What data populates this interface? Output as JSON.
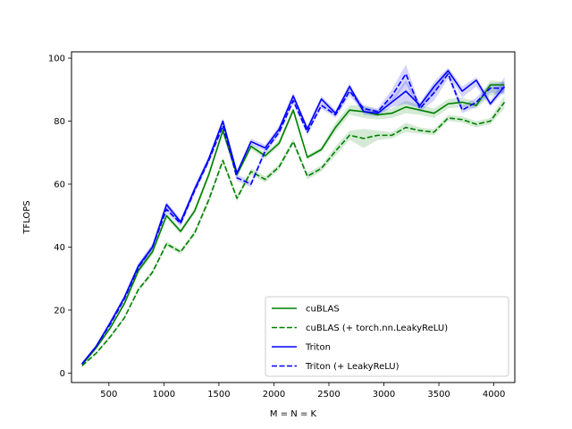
{
  "chart_data": {
    "type": "line",
    "title": "",
    "xlabel": "M = N = K",
    "ylabel": "TFLOPS",
    "xlim": [
      160,
      4190
    ],
    "ylim": [
      -3,
      102
    ],
    "xticks": [
      500,
      1000,
      1500,
      2000,
      2500,
      3000,
      3500,
      4000
    ],
    "yticks": [
      0,
      20,
      40,
      60,
      80,
      100
    ],
    "grid": false,
    "legend_position": "lower-right",
    "x": [
      256,
      384,
      512,
      640,
      768,
      896,
      1024,
      1152,
      1280,
      1408,
      1536,
      1664,
      1792,
      1920,
      2048,
      2176,
      2304,
      2432,
      2560,
      2688,
      2816,
      2944,
      3072,
      3200,
      3328,
      3456,
      3584,
      3712,
      3840,
      3968,
      4096
    ],
    "series": [
      {
        "name": "cuBLAS",
        "color": "#008000",
        "dash": "solid",
        "values": [
          2.6,
          8.0,
          14.3,
          22.0,
          32.5,
          38.5,
          50.0,
          45.0,
          51.5,
          63.0,
          77.0,
          63.0,
          72.0,
          69.0,
          73.0,
          83.5,
          68.5,
          71.0,
          78.0,
          83.5,
          83.0,
          82.0,
          82.5,
          84.5,
          83.5,
          82.5,
          85.5,
          86.0,
          85.0,
          91.5,
          91.5
        ],
        "band_low": [
          2.4,
          7.6,
          13.8,
          21.3,
          31.5,
          37.5,
          49.0,
          44.2,
          50.5,
          62.0,
          76.0,
          62.0,
          71.0,
          68.0,
          72.0,
          82.5,
          67.8,
          70.2,
          76.5,
          82.0,
          81.0,
          80.5,
          81.0,
          82.5,
          82.0,
          81.0,
          84.0,
          84.5,
          84.0,
          88.0,
          89.0
        ],
        "band_high": [
          2.8,
          8.4,
          14.8,
          22.7,
          33.5,
          39.5,
          51.0,
          45.8,
          52.5,
          64.0,
          78.0,
          64.0,
          73.0,
          70.0,
          74.0,
          84.5,
          69.2,
          71.8,
          79.5,
          85.0,
          85.0,
          83.5,
          84.0,
          86.5,
          85.0,
          84.0,
          87.0,
          87.5,
          86.0,
          93.0,
          92.5
        ]
      },
      {
        "name": "cuBLAS (+ torch.nn.LeakyReLU)",
        "color": "#008000",
        "dash": "dashed",
        "values": [
          2.3,
          6.3,
          11.5,
          17.5,
          26.5,
          32.0,
          41.0,
          38.5,
          44.5,
          55.0,
          67.5,
          55.5,
          64.0,
          61.5,
          65.5,
          73.5,
          62.5,
          65.0,
          70.5,
          75.5,
          74.5,
          75.5,
          75.5,
          78.0,
          77.0,
          76.5,
          81.0,
          80.5,
          79.0,
          80.0,
          86.0
        ],
        "band_low": [
          2.1,
          6.0,
          11.0,
          17.0,
          25.8,
          31.2,
          40.2,
          37.8,
          43.6,
          54.0,
          66.5,
          54.5,
          63.0,
          60.5,
          64.5,
          72.5,
          61.5,
          64.0,
          69.0,
          74.0,
          71.5,
          74.0,
          74.5,
          76.5,
          76.0,
          75.5,
          80.0,
          79.5,
          78.0,
          79.0,
          84.0
        ],
        "band_high": [
          2.5,
          6.6,
          12.0,
          18.0,
          27.2,
          32.8,
          41.8,
          39.2,
          45.4,
          56.0,
          68.5,
          56.5,
          65.0,
          62.5,
          66.5,
          74.5,
          63.5,
          66.0,
          72.0,
          77.0,
          77.5,
          77.0,
          76.5,
          79.5,
          78.0,
          77.5,
          82.0,
          81.5,
          80.0,
          81.0,
          88.0
        ]
      },
      {
        "name": "Triton",
        "color": "#0000ff",
        "dash": "solid",
        "values": [
          3.0,
          8.5,
          16.0,
          24.0,
          34.0,
          40.0,
          53.5,
          48.0,
          58.5,
          68.0,
          80.0,
          63.5,
          73.5,
          71.5,
          77.5,
          88.0,
          77.5,
          87.0,
          82.5,
          91.0,
          83.0,
          82.5,
          86.0,
          89.5,
          85.0,
          91.0,
          96.0,
          89.5,
          93.0,
          85.5,
          91.0
        ],
        "band_low": [
          2.8,
          8.1,
          15.4,
          23.3,
          33.0,
          39.0,
          52.5,
          47.0,
          57.5,
          67.0,
          79.0,
          62.5,
          72.5,
          70.5,
          76.5,
          87.0,
          76.5,
          86.0,
          81.5,
          89.5,
          82.0,
          81.5,
          84.5,
          85.5,
          84.0,
          88.5,
          95.0,
          87.5,
          91.0,
          84.5,
          89.5
        ],
        "band_high": [
          3.2,
          8.9,
          16.6,
          24.7,
          35.0,
          41.0,
          54.5,
          49.0,
          59.5,
          69.0,
          81.0,
          64.5,
          74.5,
          72.5,
          78.5,
          89.0,
          78.5,
          88.0,
          83.5,
          92.0,
          84.0,
          83.5,
          87.0,
          93.0,
          86.0,
          92.5,
          97.0,
          91.0,
          94.0,
          86.5,
          94.0
        ]
      },
      {
        "name": "Triton (+ LeakyReLU)",
        "color": "#0000ff",
        "dash": "dashed",
        "values": [
          2.9,
          8.4,
          15.5,
          23.5,
          33.5,
          40.0,
          52.0,
          47.5,
          58.0,
          67.5,
          78.5,
          62.0,
          60.0,
          70.5,
          76.5,
          86.5,
          76.5,
          85.0,
          82.0,
          89.5,
          84.0,
          83.0,
          88.0,
          95.0,
          84.0,
          89.0,
          95.0,
          83.5,
          86.0,
          90.5,
          90.5
        ],
        "band_low": [
          2.7,
          8.0,
          15.0,
          22.8,
          32.5,
          39.0,
          51.0,
          46.5,
          57.0,
          66.5,
          77.5,
          61.0,
          59.0,
          69.5,
          75.5,
          85.5,
          75.5,
          84.0,
          81.0,
          88.0,
          83.0,
          82.0,
          86.0,
          92.0,
          83.0,
          86.5,
          93.5,
          82.5,
          84.5,
          89.0,
          88.5
        ],
        "band_high": [
          3.1,
          8.8,
          16.0,
          24.2,
          34.5,
          41.0,
          53.0,
          48.5,
          59.0,
          68.5,
          79.5,
          63.0,
          61.0,
          71.5,
          77.5,
          87.5,
          77.5,
          86.0,
          83.0,
          91.0,
          85.0,
          84.0,
          90.0,
          98.0,
          85.0,
          91.5,
          96.5,
          85.0,
          87.5,
          92.0,
          92.5
        ]
      }
    ]
  }
}
